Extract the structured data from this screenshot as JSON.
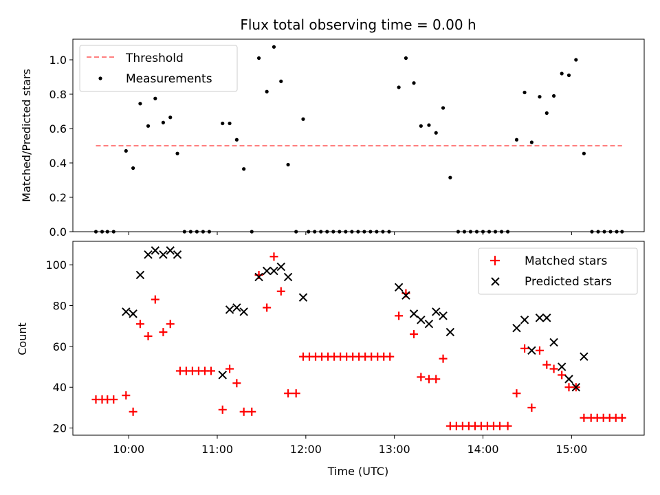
{
  "chart_data": [
    {
      "type": "scatter",
      "title": "Flux total observing time = 0.00 h",
      "ylabel": "Matched/Predicted stars",
      "xlabel": "",
      "xlim": [
        9.37,
        15.82
      ],
      "ylim": [
        0.0,
        1.12
      ],
      "yticks": [
        0.0,
        0.2,
        0.4,
        0.6,
        0.8,
        1.0
      ],
      "ytick_labels": [
        "0.0",
        "0.2",
        "0.4",
        "0.6",
        "0.8",
        "1.0"
      ],
      "legend": {
        "position": "top-left",
        "entries": [
          "Threshold",
          "Measurements"
        ]
      },
      "threshold": {
        "name": "Threshold",
        "value": 0.5,
        "x_start": 9.63,
        "x_end": 15.57,
        "color": "#ff7f7f"
      },
      "series": [
        {
          "name": "Measurements",
          "color": "#000000",
          "points": [
            [
              9.63,
              0.0
            ],
            [
              9.7,
              0.0
            ],
            [
              9.76,
              0.0
            ],
            [
              9.83,
              0.0
            ],
            [
              9.97,
              0.47
            ],
            [
              10.05,
              0.37
            ],
            [
              10.13,
              0.745
            ],
            [
              10.22,
              0.615
            ],
            [
              10.3,
              0.775
            ],
            [
              10.39,
              0.635
            ],
            [
              10.47,
              0.665
            ],
            [
              10.55,
              0.455
            ],
            [
              10.63,
              0.0
            ],
            [
              10.7,
              0.0
            ],
            [
              10.77,
              0.0
            ],
            [
              10.84,
              0.0
            ],
            [
              10.91,
              0.0
            ],
            [
              11.06,
              0.63
            ],
            [
              11.14,
              0.63
            ],
            [
              11.22,
              0.535
            ],
            [
              11.3,
              0.365
            ],
            [
              11.39,
              0.0
            ],
            [
              11.47,
              1.01
            ],
            [
              11.56,
              0.815
            ],
            [
              11.64,
              1.075
            ],
            [
              11.72,
              0.875
            ],
            [
              11.8,
              0.39
            ],
            [
              11.89,
              0.0
            ],
            [
              11.97,
              0.655
            ],
            [
              12.03,
              0.0
            ],
            [
              12.1,
              0.0
            ],
            [
              12.17,
              0.0
            ],
            [
              12.24,
              0.0
            ],
            [
              12.31,
              0.0
            ],
            [
              12.38,
              0.0
            ],
            [
              12.45,
              0.0
            ],
            [
              12.52,
              0.0
            ],
            [
              12.59,
              0.0
            ],
            [
              12.66,
              0.0
            ],
            [
              12.73,
              0.0
            ],
            [
              12.8,
              0.0
            ],
            [
              12.87,
              0.0
            ],
            [
              12.94,
              0.0
            ],
            [
              13.05,
              0.84
            ],
            [
              13.13,
              1.01
            ],
            [
              13.22,
              0.865
            ],
            [
              13.3,
              0.615
            ],
            [
              13.39,
              0.62
            ],
            [
              13.47,
              0.575
            ],
            [
              13.55,
              0.72
            ],
            [
              13.63,
              0.315
            ],
            [
              13.72,
              0.0
            ],
            [
              13.79,
              0.0
            ],
            [
              13.86,
              0.0
            ],
            [
              13.93,
              0.0
            ],
            [
              14.0,
              0.0
            ],
            [
              14.07,
              0.0
            ],
            [
              14.14,
              0.0
            ],
            [
              14.21,
              0.0
            ],
            [
              14.28,
              0.0
            ],
            [
              14.38,
              0.535
            ],
            [
              14.47,
              0.81
            ],
            [
              14.55,
              0.52
            ],
            [
              14.64,
              0.785
            ],
            [
              14.72,
              0.69
            ],
            [
              14.8,
              0.79
            ],
            [
              14.89,
              0.92
            ],
            [
              14.97,
              0.91
            ],
            [
              15.05,
              1.0
            ],
            [
              15.14,
              0.455
            ],
            [
              15.23,
              0.0
            ],
            [
              15.3,
              0.0
            ],
            [
              15.37,
              0.0
            ],
            [
              15.44,
              0.0
            ],
            [
              15.51,
              0.0
            ],
            [
              15.57,
              0.0
            ]
          ]
        }
      ]
    },
    {
      "type": "scatter",
      "title": "",
      "xlabel": "Time (UTC)",
      "ylabel": "Count",
      "xlim": [
        9.37,
        15.82
      ],
      "ylim": [
        16.5,
        111.5
      ],
      "xticks": [
        10,
        11,
        12,
        13,
        14,
        15
      ],
      "xtick_labels": [
        "10:00",
        "11:00",
        "12:00",
        "13:00",
        "14:00",
        "15:00"
      ],
      "yticks": [
        20,
        40,
        60,
        80,
        100
      ],
      "ytick_labels": [
        "20",
        "40",
        "60",
        "80",
        "100"
      ],
      "legend": {
        "position": "top-right",
        "entries": [
          "Matched stars",
          "Predicted stars"
        ]
      },
      "series": [
        {
          "name": "Matched stars",
          "marker": "plus",
          "color": "#ff0000",
          "points": [
            [
              9.63,
              34
            ],
            [
              9.7,
              34
            ],
            [
              9.76,
              34
            ],
            [
              9.83,
              34
            ],
            [
              9.97,
              36
            ],
            [
              10.05,
              28
            ],
            [
              10.13,
              71
            ],
            [
              10.22,
              65
            ],
            [
              10.3,
              83
            ],
            [
              10.39,
              67
            ],
            [
              10.47,
              71
            ],
            [
              10.58,
              48
            ],
            [
              10.65,
              48
            ],
            [
              10.72,
              48
            ],
            [
              10.79,
              48
            ],
            [
              10.86,
              48
            ],
            [
              10.93,
              48
            ],
            [
              11.06,
              29
            ],
            [
              11.14,
              49
            ],
            [
              11.22,
              42
            ],
            [
              11.3,
              28
            ],
            [
              11.39,
              28
            ],
            [
              11.47,
              95
            ],
            [
              11.56,
              79
            ],
            [
              11.64,
              104
            ],
            [
              11.72,
              87
            ],
            [
              11.8,
              37
            ],
            [
              11.89,
              37
            ],
            [
              11.97,
              55
            ],
            [
              12.04,
              55
            ],
            [
              12.11,
              55
            ],
            [
              12.18,
              55
            ],
            [
              12.25,
              55
            ],
            [
              12.32,
              55
            ],
            [
              12.39,
              55
            ],
            [
              12.46,
              55
            ],
            [
              12.53,
              55
            ],
            [
              12.6,
              55
            ],
            [
              12.67,
              55
            ],
            [
              12.74,
              55
            ],
            [
              12.81,
              55
            ],
            [
              12.88,
              55
            ],
            [
              12.95,
              55
            ],
            [
              13.05,
              75
            ],
            [
              13.13,
              86
            ],
            [
              13.22,
              66
            ],
            [
              13.3,
              45
            ],
            [
              13.39,
              44
            ],
            [
              13.47,
              44
            ],
            [
              13.55,
              54
            ],
            [
              13.63,
              21
            ],
            [
              13.7,
              21
            ],
            [
              13.77,
              21
            ],
            [
              13.84,
              21
            ],
            [
              13.91,
              21
            ],
            [
              13.98,
              21
            ],
            [
              14.05,
              21
            ],
            [
              14.12,
              21
            ],
            [
              14.19,
              21
            ],
            [
              14.28,
              21
            ],
            [
              14.38,
              37
            ],
            [
              14.47,
              59
            ],
            [
              14.55,
              30
            ],
            [
              14.64,
              58
            ],
            [
              14.72,
              51
            ],
            [
              14.8,
              49
            ],
            [
              14.89,
              46
            ],
            [
              14.97,
              40
            ],
            [
              15.05,
              40
            ],
            [
              15.14,
              25
            ],
            [
              15.22,
              25
            ],
            [
              15.29,
              25
            ],
            [
              15.36,
              25
            ],
            [
              15.43,
              25
            ],
            [
              15.5,
              25
            ],
            [
              15.57,
              25
            ]
          ]
        },
        {
          "name": "Predicted stars",
          "marker": "x",
          "color": "#000000",
          "points": [
            [
              9.97,
              77
            ],
            [
              10.05,
              76
            ],
            [
              10.13,
              95
            ],
            [
              10.22,
              105
            ],
            [
              10.3,
              107
            ],
            [
              10.39,
              105
            ],
            [
              10.47,
              107
            ],
            [
              10.55,
              105
            ],
            [
              11.06,
              46
            ],
            [
              11.14,
              78
            ],
            [
              11.22,
              79
            ],
            [
              11.3,
              77
            ],
            [
              11.47,
              94
            ],
            [
              11.56,
              97
            ],
            [
              11.64,
              97
            ],
            [
              11.72,
              99
            ],
            [
              11.8,
              94
            ],
            [
              11.97,
              84
            ],
            [
              13.05,
              89
            ],
            [
              13.13,
              85
            ],
            [
              13.22,
              76
            ],
            [
              13.3,
              73
            ],
            [
              13.39,
              71
            ],
            [
              13.47,
              77
            ],
            [
              13.55,
              75
            ],
            [
              13.63,
              67
            ],
            [
              14.38,
              69
            ],
            [
              14.47,
              73
            ],
            [
              14.55,
              58
            ],
            [
              14.64,
              74
            ],
            [
              14.72,
              74
            ],
            [
              14.8,
              62
            ],
            [
              14.89,
              50
            ],
            [
              14.97,
              44
            ],
            [
              15.05,
              40
            ],
            [
              15.14,
              55
            ]
          ]
        }
      ]
    }
  ]
}
